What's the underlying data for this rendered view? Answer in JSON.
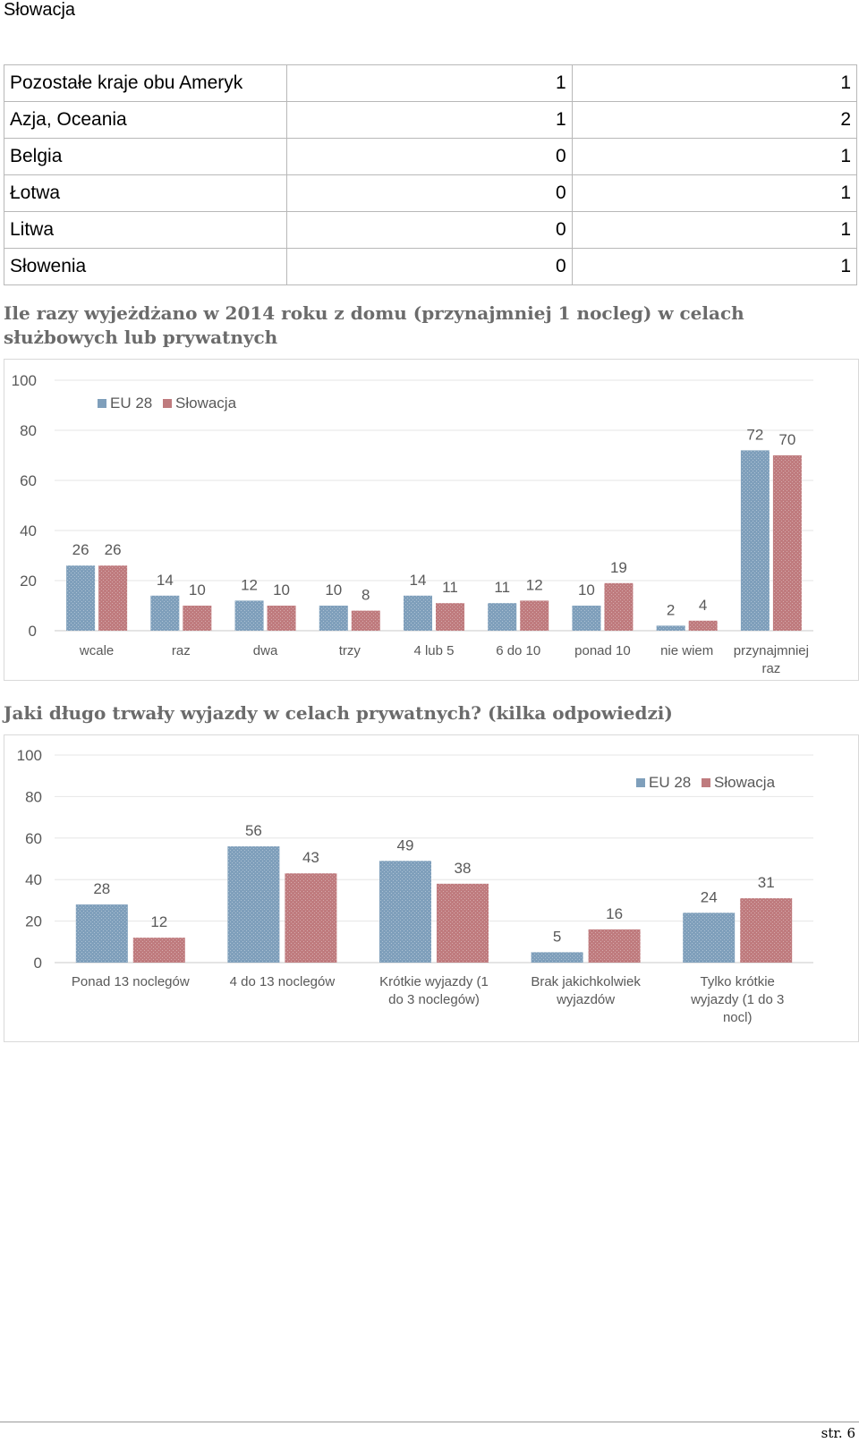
{
  "header": {
    "title": "Słowacja"
  },
  "table": {
    "rows": [
      {
        "country": "Pozostałe kraje obu Ameryk",
        "eu": "1",
        "sk": "1"
      },
      {
        "country": "Azja, Oceania",
        "eu": "1",
        "sk": "2"
      },
      {
        "country": "Belgia",
        "eu": "0",
        "sk": "1"
      },
      {
        "country": "Łotwa",
        "eu": "0",
        "sk": "1"
      },
      {
        "country": "Litwa",
        "eu": "0",
        "sk": "1"
      },
      {
        "country": "Słowenia",
        "eu": "0",
        "sk": "1"
      }
    ]
  },
  "sections": {
    "chart1_heading": "Ile razy wyjeżdżano w 2014 roku z domu (przynajmniej 1 nocleg) w celach służbowych lub prywatnych",
    "chart2_heading": "Jaki długo trwały wyjazdy w celach prywatnych? (kilka odpowiedzi)"
  },
  "colors": {
    "eu": "#7f9fbb",
    "sk": "#bf7b7e",
    "grid": "#e6e6e6",
    "text": "#595959"
  },
  "chart_data": [
    {
      "type": "bar",
      "title": "",
      "categories": [
        "wcale",
        "raz",
        "dwa",
        "trzy",
        "4 lub 5",
        "6 do 10",
        "ponad 10",
        "nie wiem",
        "przynajmniej raz"
      ],
      "series": [
        {
          "name": "EU 28",
          "values": [
            26,
            14,
            12,
            10,
            14,
            11,
            10,
            2,
            72
          ]
        },
        {
          "name": "Słowacja",
          "values": [
            26,
            10,
            10,
            8,
            11,
            12,
            19,
            4,
            70
          ]
        }
      ],
      "ylim": [
        0,
        100
      ],
      "yticks": [
        0,
        20,
        40,
        60,
        80,
        100
      ],
      "legend": "top-left",
      "grid": true
    },
    {
      "type": "bar",
      "title": "",
      "categories": [
        "Ponad 13 noclegów",
        "4 do 13 noclegów",
        "Krótkie wyjazdy (1 do 3 noclegów)",
        "Brak jakichkolwiek wyjazdów",
        "Tylko krótkie wyjazdy (1 do 3 nocl)"
      ],
      "series": [
        {
          "name": "EU 28",
          "values": [
            28,
            56,
            49,
            5,
            24
          ]
        },
        {
          "name": "Słowacja",
          "values": [
            12,
            43,
            38,
            16,
            31
          ]
        }
      ],
      "ylim": [
        0,
        100
      ],
      "yticks": [
        0,
        20,
        40,
        60,
        80,
        100
      ],
      "legend": "top-right",
      "grid": true
    }
  ],
  "footer": {
    "page": "str. 6"
  }
}
